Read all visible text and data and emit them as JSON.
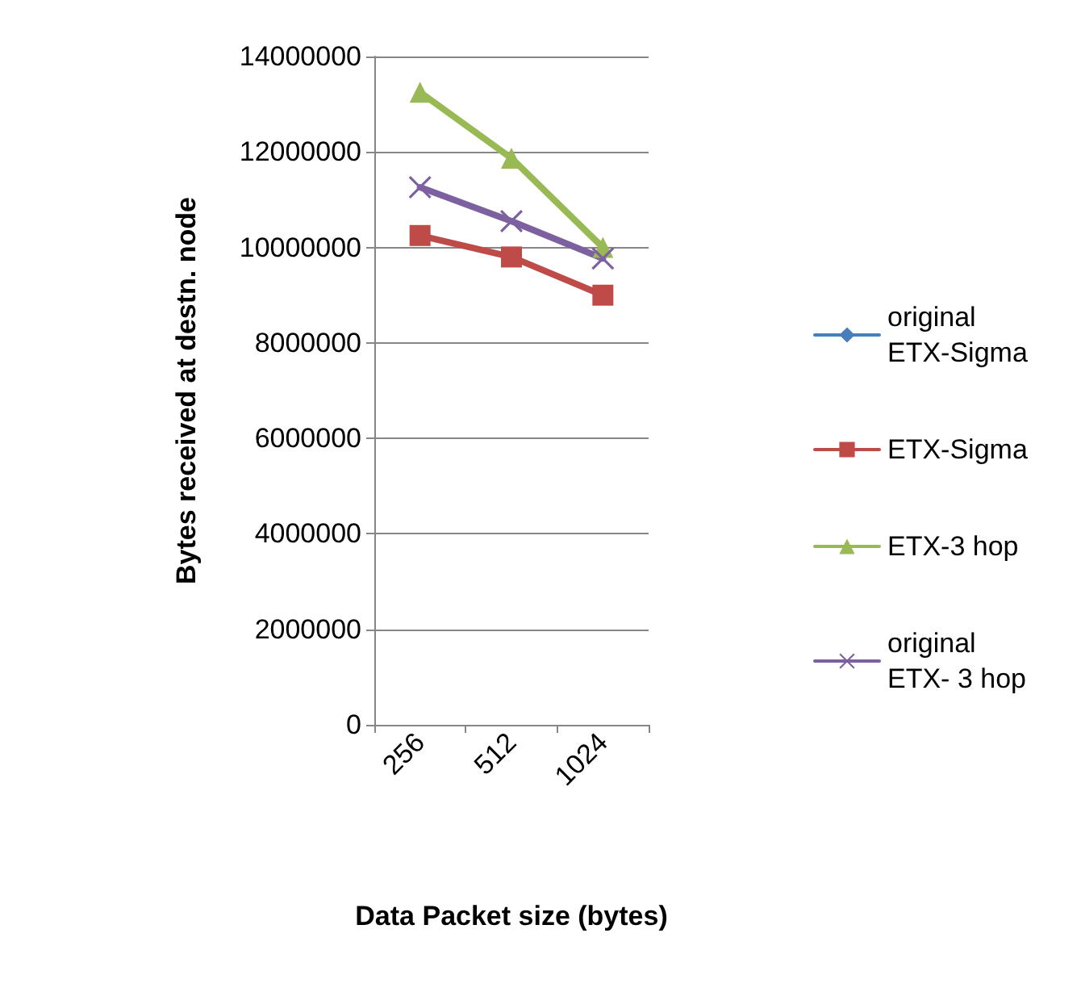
{
  "chart_data": {
    "type": "line",
    "xlabel": "Data Packet size (bytes)",
    "ylabel": "Bytes received at destn. node",
    "categories": [
      "256",
      "512",
      "1024"
    ],
    "series": [
      {
        "name": "original ETX-Sigma",
        "color": "#4a7ebb",
        "marker": "diamond",
        "values": [
          null,
          null,
          null
        ]
      },
      {
        "name": "ETX-Sigma",
        "color": "#be4b48",
        "marker": "square",
        "values": [
          10250000,
          9800000,
          9000000
        ]
      },
      {
        "name": "ETX-3 hop",
        "color": "#98b954",
        "marker": "triangle",
        "values": [
          13250000,
          11870000,
          10000000
        ]
      },
      {
        "name": "original ETX- 3 hop",
        "color": "#7d60a0",
        "marker": "cross",
        "values": [
          11260000,
          10550000,
          9770000
        ]
      }
    ],
    "ylim": [
      0,
      14000000
    ],
    "yticks": [
      0,
      2000000,
      4000000,
      6000000,
      8000000,
      10000000,
      12000000,
      14000000
    ],
    "grid": "y",
    "legend": "right"
  }
}
